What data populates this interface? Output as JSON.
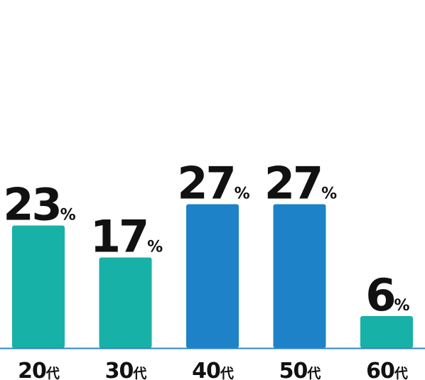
{
  "chart_data": {
    "type": "bar",
    "categories": [
      "20代",
      "30代",
      "40代",
      "50代",
      "60代"
    ],
    "values": [
      23,
      17,
      27,
      27,
      6
    ],
    "value_labels": [
      "23%",
      "17%",
      "27%",
      "27%",
      "6%"
    ],
    "colors": [
      "#17b1a8",
      "#17b1a8",
      "#1d82c7",
      "#1d82c7",
      "#17b1a8"
    ],
    "axis_color": "#2f86c6"
  }
}
